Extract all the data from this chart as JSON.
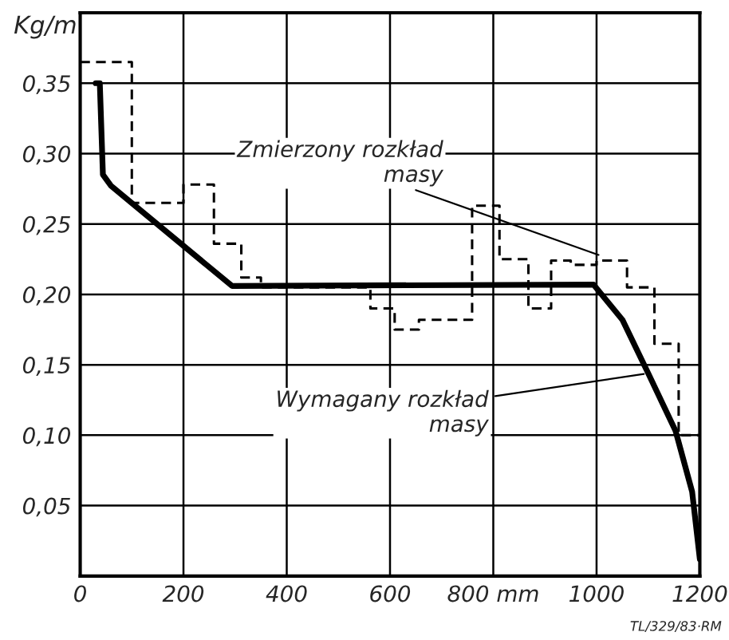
{
  "chart_data": {
    "type": "step",
    "ylabel": "Kg/m",
    "series": [
      {
        "color": "#000000",
        "line_style": "dashed",
        "x": [
          0,
          100,
          200,
          259,
          312,
          350,
          562,
          609,
          656,
          759,
          812,
          868,
          912,
          950,
          1000,
          1059,
          1112,
          1159,
          1200
        ],
        "values": [
          0.365,
          0.265,
          0.278,
          0.236,
          0.212,
          0.205,
          0.19,
          0.175,
          0.182,
          0.263,
          0.225,
          0.19,
          0.224,
          0.221,
          0.224,
          0.205,
          0.165,
          0.1,
          0.1
        ]
      },
      {
        "type": "line",
        "color": "#000000",
        "line_style": "solid",
        "x": [
          30,
          38,
          44,
          60,
          294,
          994,
          1050,
          1100,
          1153,
          1185,
          1200
        ],
        "values": [
          0.35,
          0.35,
          0.285,
          0.277,
          0.206,
          0.207,
          0.182,
          0.144,
          0.103,
          0.06,
          0.012
        ]
      }
    ],
    "xlim": [
      0,
      1200
    ],
    "ylim": [
      0,
      0.4
    ],
    "xticks": [
      0,
      200,
      400,
      600,
      {
        "value": 800,
        "label": "800 mm"
      },
      1000,
      1200
    ],
    "yticks": [
      {
        "value": 0.05,
        "label": "0,05"
      },
      {
        "value": 0.1,
        "label": "0,10"
      },
      {
        "value": 0.15,
        "label": "0,15"
      },
      {
        "value": 0.2,
        "label": "0,20"
      },
      {
        "value": 0.25,
        "label": "0,25"
      },
      {
        "value": 0.3,
        "label": "0,30"
      },
      {
        "value": 0.35,
        "label": "0,35"
      }
    ],
    "grid": true,
    "annotations": [
      {
        "text": "Zmierzony rozkład\nmasy",
        "x": 1012,
        "y": 0.227
      },
      {
        "text": "Wymagany rozkład\nmasy",
        "x": 1100,
        "y": 0.144
      },
      "TL/329/83·RM"
    ]
  }
}
